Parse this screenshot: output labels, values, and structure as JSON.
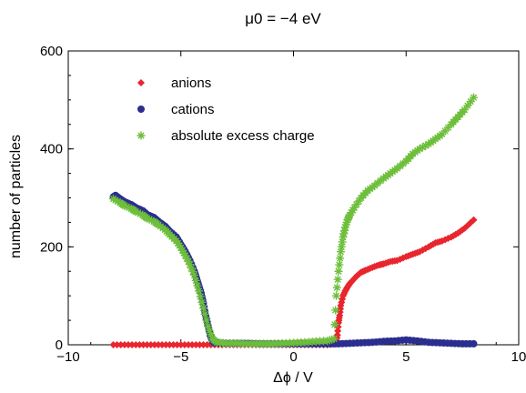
{
  "chart_data": {
    "type": "scatter",
    "title": "μ0 = −4 eV",
    "xlabel": "Δϕ / V",
    "ylabel": "number of particles",
    "xlim": [
      -10,
      10
    ],
    "ylim": [
      0,
      600
    ],
    "xticks": [
      "−10",
      "−5",
      "0",
      "5",
      "10"
    ],
    "yticks": [
      "0",
      "200",
      "400",
      "600"
    ],
    "grid": false,
    "legend_position": "top-left",
    "series": [
      {
        "name": "anions",
        "marker": "diamond",
        "color": "#e8262d",
        "x": [
          -8.0,
          -7.5,
          -7.0,
          -6.5,
          -6.0,
          -5.5,
          -5.0,
          -4.5,
          -4.0,
          -3.5,
          -3.0,
          -2.5,
          -2.0,
          -1.5,
          -1.0,
          -0.5,
          0.0,
          0.5,
          1.0,
          1.5,
          1.9,
          1.95,
          2.0,
          2.05,
          2.1,
          2.2,
          2.3,
          2.4,
          2.5,
          2.6,
          2.8,
          3.0,
          3.2,
          3.5,
          3.8,
          4.0,
          4.3,
          4.6,
          5.0,
          5.3,
          5.6,
          6.0,
          6.3,
          6.6,
          7.0,
          7.3,
          7.6,
          8.0
        ],
        "y": [
          0,
          0,
          0,
          0,
          0,
          0,
          0,
          0,
          0,
          0,
          0,
          0,
          0,
          0,
          0,
          0,
          0,
          0,
          0,
          0,
          2,
          20,
          45,
          60,
          80,
          100,
          110,
          118,
          125,
          130,
          140,
          148,
          152,
          158,
          163,
          165,
          170,
          172,
          180,
          185,
          190,
          200,
          208,
          212,
          220,
          228,
          238,
          255
        ]
      },
      {
        "name": "cations",
        "marker": "circle",
        "color": "#2b2e8e",
        "x": [
          -8.0,
          -7.9,
          -7.7,
          -7.5,
          -7.2,
          -7.0,
          -6.7,
          -6.5,
          -6.2,
          -6.0,
          -5.7,
          -5.5,
          -5.2,
          -5.0,
          -4.8,
          -4.6,
          -4.4,
          -4.3,
          -4.2,
          -4.1,
          -4.0,
          -3.9,
          -3.8,
          -3.7,
          -3.6,
          -3.5,
          -3.0,
          -2.5,
          -2.0,
          -1.5,
          -1.0,
          -0.5,
          0.0,
          0.5,
          1.0,
          1.5,
          2.0,
          2.5,
          3.0,
          3.5,
          4.0,
          4.5,
          5.0,
          5.5,
          6.0,
          6.5,
          7.0,
          7.5,
          8.0
        ],
        "y": [
          302,
          305,
          298,
          292,
          286,
          280,
          274,
          266,
          260,
          252,
          242,
          232,
          220,
          205,
          190,
          172,
          150,
          135,
          120,
          105,
          85,
          60,
          40,
          20,
          8,
          4,
          3,
          3,
          3,
          2,
          2,
          2,
          2,
          2,
          2,
          2,
          2,
          3,
          4,
          5,
          7,
          8,
          10,
          8,
          5,
          4,
          3,
          2,
          2
        ]
      },
      {
        "name": "absolute excess charge",
        "marker": "asterisk",
        "color": "#6dbf3a",
        "x": [
          -8.0,
          -7.7,
          -7.5,
          -7.2,
          -7.0,
          -6.7,
          -6.5,
          -6.2,
          -6.0,
          -5.7,
          -5.5,
          -5.2,
          -5.0,
          -4.8,
          -4.6,
          -4.4,
          -4.2,
          -4.0,
          -3.8,
          -3.6,
          -3.4,
          -3.0,
          -2.5,
          -2.0,
          -1.5,
          -1.0,
          -0.5,
          0.0,
          0.5,
          1.0,
          1.5,
          1.8,
          1.9,
          2.0,
          2.1,
          2.2,
          2.3,
          2.4,
          2.5,
          2.7,
          3.0,
          3.3,
          3.6,
          4.0,
          4.3,
          4.6,
          5.0,
          5.3,
          5.6,
          6.0,
          6.3,
          6.6,
          7.0,
          7.3,
          7.6,
          8.0
        ],
        "y": [
          298,
          290,
          284,
          278,
          272,
          265,
          258,
          252,
          245,
          235,
          225,
          212,
          198,
          182,
          164,
          142,
          110,
          75,
          38,
          12,
          5,
          3,
          3,
          2,
          2,
          2,
          3,
          4,
          5,
          7,
          8,
          12,
          100,
          150,
          190,
          220,
          240,
          255,
          265,
          280,
          300,
          315,
          325,
          340,
          350,
          360,
          375,
          390,
          400,
          410,
          420,
          430,
          450,
          465,
          480,
          505
        ]
      }
    ]
  }
}
